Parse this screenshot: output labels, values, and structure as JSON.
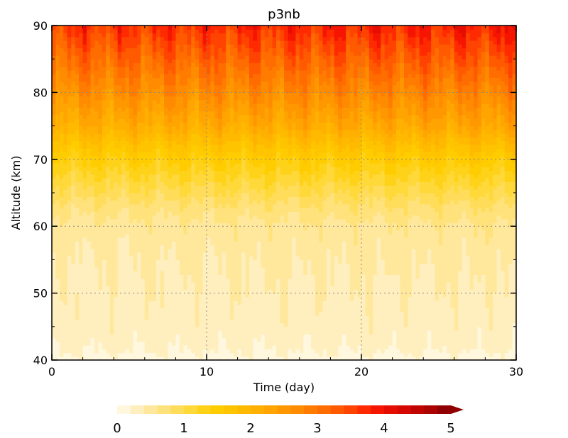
{
  "chart_data": {
    "type": "heatmap",
    "title": "p3nb",
    "xlabel": "Time (day)",
    "ylabel": "Altitude (km)",
    "xlim": [
      0,
      30
    ],
    "ylim": [
      40,
      90
    ],
    "x_ticks": [
      0,
      10,
      20,
      30
    ],
    "y_ticks": [
      40,
      50,
      60,
      70,
      80,
      90
    ],
    "x_tick_labels": [
      "0",
      "10",
      "20",
      "30"
    ],
    "y_tick_labels": [
      "40",
      "50",
      "60",
      "70",
      "80",
      "90"
    ],
    "grid": true,
    "colorbar": {
      "placement": "bottom",
      "min": 0,
      "max": 5,
      "step": 0.2,
      "ticks": [
        0,
        1,
        2,
        3,
        4,
        5
      ],
      "tick_labels": [
        "0",
        "1",
        "2",
        "3",
        "4",
        "5"
      ],
      "extend": "max",
      "colors": [
        "#fff7de",
        "#ffefbe",
        "#ffe89c",
        "#ffe27b",
        "#ffdd5a",
        "#ffd83a",
        "#ffd21a",
        "#ffcc00",
        "#ffc400",
        "#ffba00",
        "#ffb000",
        "#ffa400",
        "#ff9800",
        "#ff8b00",
        "#ff7c00",
        "#ff6c00",
        "#ff5a00",
        "#ff4300",
        "#ff2a00",
        "#f51500",
        "#e50d00",
        "#d40800",
        "#c00500",
        "#ab0300",
        "#900000"
      ]
    },
    "profile": {
      "altitude_km": [
        40,
        42,
        45,
        50,
        55,
        60,
        63,
        65,
        67,
        70,
        73,
        75,
        78,
        80,
        83,
        85,
        88,
        90
      ],
      "mean_value": [
        0.1,
        0.25,
        0.3,
        0.35,
        0.4,
        0.5,
        0.7,
        0.9,
        1.1,
        1.4,
        1.8,
        2.1,
        2.4,
        2.6,
        2.9,
        3.1,
        3.4,
        3.6
      ]
    }
  }
}
